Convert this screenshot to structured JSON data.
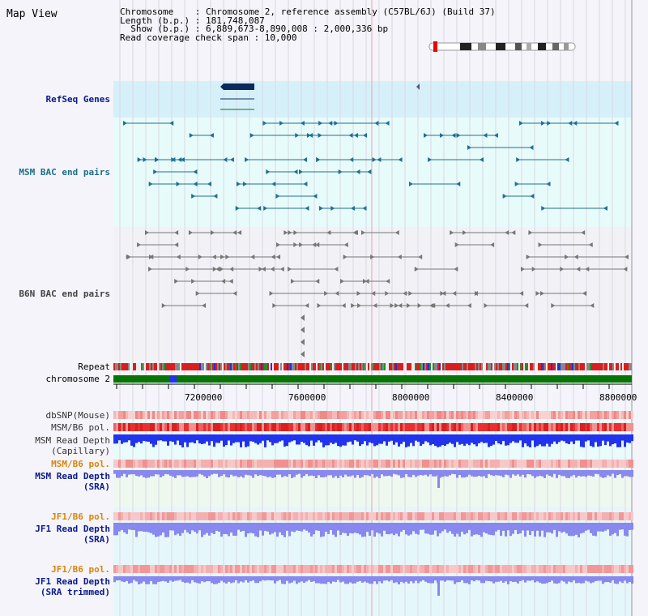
{
  "title": "Map View",
  "info": {
    "line1": "Chromosome    : Chromosome 2, reference assembly (C57BL/6J) (Build 37)",
    "line2": "Length (b.p.) : 181,748,087",
    "line3": "  Show (b.p.) : 6,889,673-8,890,008 : 2,000,336 bp",
    "line4": "Read coverage check span : 10,000"
  },
  "tracks": {
    "refseq": "RefSeq Genes",
    "msm_bac": "MSM BAC end pairs",
    "b6n_bac": "B6N BAC end pairs",
    "repeat": "Repeat",
    "chromosome": "chromosome 2",
    "dbsnp": "dbSNP(Mouse)",
    "msm_b6_pol": "MSM/B6 pol.",
    "msm_depth_cap_1": "MSM Read Depth",
    "msm_depth_cap_2": "(Capillary)",
    "msm_b6_pol2": "MSM/B6 pol.",
    "msm_depth_sra_1": "MSM Read Depth",
    "msm_depth_sra_2": "(SRA)",
    "jf1_pol": "JF1/B6 pol.",
    "jf1_depth_1": "JF1 Read Depth",
    "jf1_depth_2": "(SRA)",
    "jf1_pol2": "JF1/B6 pol.",
    "jf1_trim_1": "JF1 Read Depth",
    "jf1_trim_2": "(SRA trimmed)"
  },
  "axis": {
    "ticks": [
      "7200000",
      "7600000",
      "8000000",
      "8400000",
      "8800000"
    ]
  },
  "colors": {
    "refseq_bg": "#d6f0fa",
    "msm_bg": "#e8fbfb",
    "b6n_bg": "#f2f2f6",
    "gene": "#0a2a5c",
    "msm_feature": "#1e7090",
    "b6n_feature": "#777777",
    "chromosome_bar": "#067506",
    "depth_blue": "#2233ee",
    "depth_sra": "#8888ee"
  }
}
